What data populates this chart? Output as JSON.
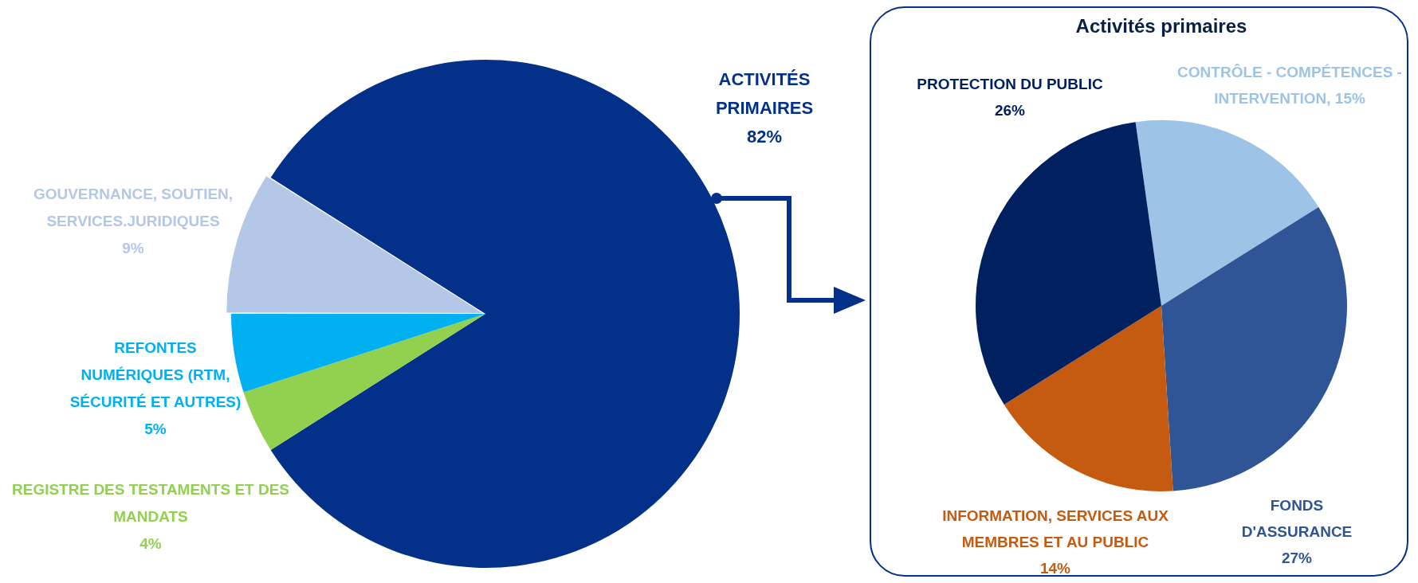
{
  "chart_data": [
    {
      "type": "pie",
      "categories": [
        "ACTIVITÉS PRIMAIRES",
        "REGISTRE DES TESTAMENTS ET DES MANDATS",
        "REFONTES NUMÉRIQUES (RTM, SÉCURITÉ ET AUTRES)",
        "GOUVERNANCE, SOUTIEN, SERVICES.JURIDIQUES"
      ],
      "values": [
        82,
        4,
        5,
        9
      ],
      "colors": [
        "#03318a",
        "#92d050",
        "#00b0f0",
        "#b4c7e7"
      ],
      "value_labels": [
        "82%",
        "4%",
        "5%",
        "9%"
      ]
    },
    {
      "type": "pie",
      "title": "Activités primaires",
      "categories": [
        "CONTRÔLE - COMPÉTENCES - INTERVENTION",
        "FONDS D'ASSURANCE",
        "INFORMATION, SERVICES AUX MEMBRES ET AU PUBLIC",
        "PROTECTION DU PUBLIC"
      ],
      "values": [
        15,
        27,
        14,
        26
      ],
      "colors": [
        "#9dc3e6",
        "#2f5597",
        "#c55a11",
        "#002060"
      ],
      "value_labels": [
        "15%",
        "27%",
        "14%",
        "26%"
      ]
    }
  ]
}
